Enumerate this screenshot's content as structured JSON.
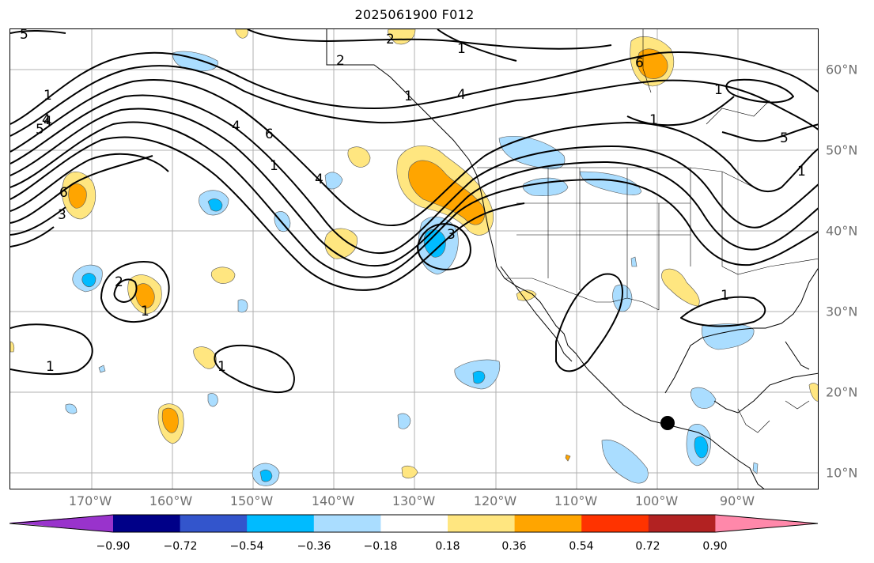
{
  "title": "2025061900 F012",
  "lon_labels": [
    "170°W",
    "160°W",
    "150°W",
    "140°W",
    "130°W",
    "120°W",
    "110°W",
    "100°W",
    "90°W"
  ],
  "lat_labels": [
    "60°N",
    "50°N",
    "40°N",
    "30°N",
    "20°N",
    "10°N"
  ],
  "contour_labels": [
    "5",
    "1",
    "4",
    "2",
    "1",
    "6",
    "1",
    "1",
    "4",
    "5",
    "6",
    "4",
    "2",
    "6",
    "1",
    "4",
    "1",
    "3",
    "2",
    "1",
    "1",
    "1",
    "3",
    "4",
    "5",
    "1",
    "1"
  ],
  "colorbar": {
    "tick_labels": [
      "−0.90",
      "−0.72",
      "−0.54",
      "−0.36",
      "−0.18",
      "0.18",
      "0.36",
      "0.54",
      "0.72",
      "0.90"
    ],
    "colors": [
      "#9933cc",
      "#000088",
      "#3355cc",
      "#00bbff",
      "#aaddff",
      "#ffffff",
      "#ffe680",
      "#ffa500",
      "#ff3300",
      "#b22222",
      "#ff88aa"
    ]
  },
  "fill_colors": {
    "positive_weak": "#ffe680",
    "positive_mid": "#ffa500",
    "negative_weak": "#aaddff",
    "negative_mid": "#00bbff"
  },
  "marker": "black-dot"
}
